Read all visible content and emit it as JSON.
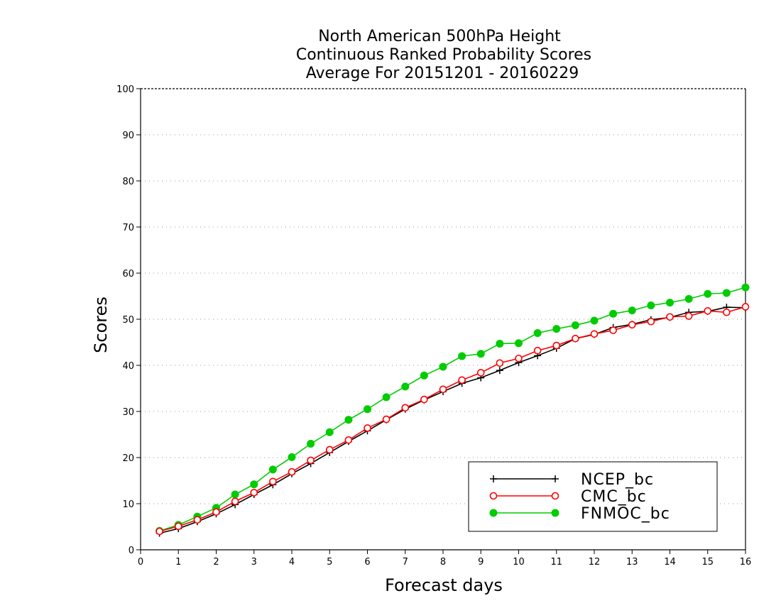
{
  "chart_data": {
    "type": "line",
    "title_lines": [
      "North American 500hPa Height",
      "Continuous Ranked Probability Scores",
      "Average For 20151201 - 20160229"
    ],
    "xlabel": "Forecast days",
    "ylabel": "Scores",
    "xlim": [
      0,
      16
    ],
    "ylim": [
      0,
      100
    ],
    "xticks": [
      0,
      1,
      2,
      3,
      4,
      5,
      6,
      7,
      8,
      9,
      10,
      11,
      12,
      13,
      14,
      15,
      16
    ],
    "yticks": [
      0,
      10,
      20,
      30,
      40,
      50,
      60,
      70,
      80,
      90,
      100
    ],
    "grid": "horizontal dotted",
    "legend_position": "bottom-right",
    "x": [
      0.5,
      1,
      1.5,
      2,
      2.5,
      3,
      3.5,
      4,
      4.5,
      5,
      5.5,
      6,
      6.5,
      7,
      7.5,
      8,
      8.5,
      9,
      9.5,
      10,
      10.5,
      11,
      11.5,
      12,
      12.5,
      13,
      13.5,
      14,
      14.5,
      15,
      15.5,
      16
    ],
    "series": [
      {
        "name": "NCEP_bc",
        "color": "#000000",
        "marker": "plus",
        "values": [
          3.6,
          4.6,
          6.1,
          7.8,
          9.8,
          12.0,
          14.1,
          16.5,
          18.7,
          21.1,
          23.5,
          25.8,
          28.2,
          30.5,
          32.5,
          34.3,
          36.1,
          37.3,
          38.9,
          40.6,
          42.1,
          43.7,
          45.8,
          46.7,
          48.2,
          48.9,
          49.9,
          50.4,
          51.5,
          51.7,
          52.6,
          52.5
        ]
      },
      {
        "name": "CMC_bc",
        "color": "#ff0000",
        "marker": "open-circle",
        "values": [
          4.0,
          5.1,
          6.5,
          8.2,
          10.5,
          12.4,
          14.8,
          16.9,
          19.4,
          21.7,
          23.8,
          26.4,
          28.3,
          30.8,
          32.6,
          34.8,
          36.8,
          38.4,
          40.5,
          41.5,
          43.2,
          44.3,
          45.8,
          46.8,
          47.6,
          48.8,
          49.5,
          50.5,
          50.7,
          51.8,
          51.5,
          52.7
        ]
      },
      {
        "name": "FNMOC_bc",
        "color": "#00cc00",
        "marker": "filled-circle",
        "values": [
          4.1,
          5.4,
          7.2,
          9.1,
          12.0,
          14.2,
          17.4,
          20.1,
          23.0,
          25.5,
          28.2,
          30.5,
          33.1,
          35.4,
          37.8,
          39.7,
          42.0,
          42.5,
          44.7,
          44.8,
          47.0,
          47.9,
          48.7,
          49.7,
          51.2,
          51.9,
          53.0,
          53.6,
          54.4,
          55.5,
          55.7,
          56.9
        ]
      }
    ]
  }
}
